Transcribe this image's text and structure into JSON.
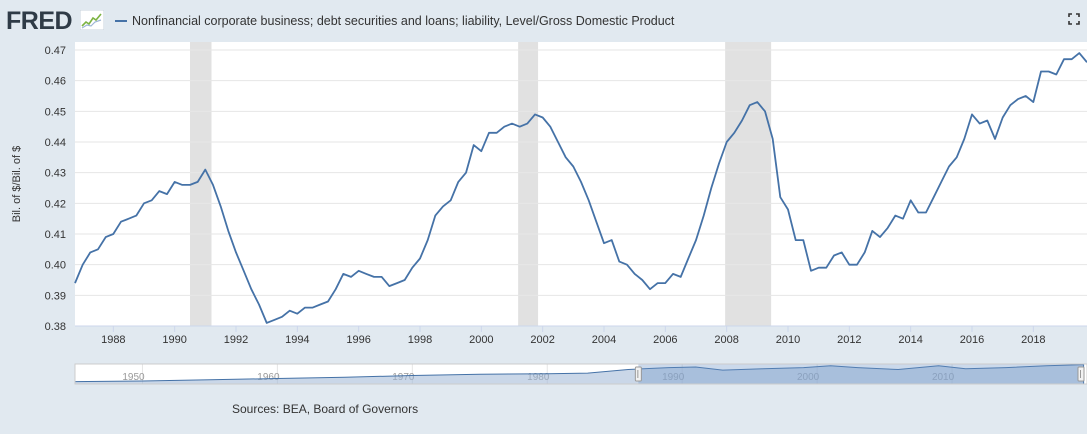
{
  "header": {
    "logo_text": "FRED",
    "logo_icon": "sparkline-icon",
    "series_label": "Nonfinancial corporate business; debt securities and loans; liability, Level/Gross Domestic Product",
    "fullscreen_icon": "expand-icon"
  },
  "colors": {
    "line": "#4572a7",
    "recession": "#e1e1e1",
    "page_background": "#e1e9f0",
    "plot_background": "#ffffff",
    "navigator_fill": "#9eb6d6",
    "navigator_mask": "#6b93c7"
  },
  "source_text": "Sources: BEA, Board of Governors",
  "chart_data": {
    "type": "line",
    "ylabel": "Bil. of $/Bil. of $",
    "ylim": [
      0.38,
      0.47
    ],
    "y_ticks": [
      "0.38",
      "0.39",
      "0.40",
      "0.41",
      "0.42",
      "0.43",
      "0.44",
      "0.45",
      "0.46",
      "0.47"
    ],
    "x_ticks": [
      "1988",
      "1990",
      "1992",
      "1994",
      "1996",
      "1998",
      "2000",
      "2002",
      "2004",
      "2006",
      "2008",
      "2010",
      "2012",
      "2014",
      "2016",
      "2018"
    ],
    "grid": "horizontal",
    "recessions": [
      [
        1990.5,
        1991.2
      ],
      [
        2001.2,
        2001.85
      ],
      [
        2007.95,
        2009.45
      ]
    ],
    "series": [
      {
        "x": [
          1986.75,
          1987.0,
          1987.25,
          1987.5,
          1987.75,
          1988.0,
          1988.25,
          1988.5,
          1988.75,
          1989.0,
          1989.25,
          1989.5,
          1989.75,
          1990.0,
          1990.25,
          1990.5,
          1990.75,
          1991.0,
          1991.25,
          1991.5,
          1991.75,
          1992.0,
          1992.25,
          1992.5,
          1992.75,
          1993.0,
          1993.25,
          1993.5,
          1993.75,
          1994.0,
          1994.25,
          1994.5,
          1994.75,
          1995.0,
          1995.25,
          1995.5,
          1995.75,
          1996.0,
          1996.25,
          1996.5,
          1996.75,
          1997.0,
          1997.25,
          1997.5,
          1997.75,
          1998.0,
          1998.25,
          1998.5,
          1998.75,
          1999.0,
          1999.25,
          1999.5,
          1999.75,
          2000.0,
          2000.25,
          2000.5,
          2000.75,
          2001.0,
          2001.25,
          2001.5,
          2001.75,
          2002.0,
          2002.25,
          2002.5,
          2002.75,
          2003.0,
          2003.25,
          2003.5,
          2003.75,
          2004.0,
          2004.25,
          2004.5,
          2004.75,
          2005.0,
          2005.25,
          2005.5,
          2005.75,
          2006.0,
          2006.25,
          2006.5,
          2006.75,
          2007.0,
          2007.25,
          2007.5,
          2007.75,
          2008.0,
          2008.25,
          2008.5,
          2008.75,
          2009.0,
          2009.25,
          2009.5,
          2009.75,
          2010.0,
          2010.25,
          2010.5,
          2010.75,
          2011.0,
          2011.25,
          2011.5,
          2011.75,
          2012.0,
          2012.25,
          2012.5,
          2012.75,
          2013.0,
          2013.25,
          2013.5,
          2013.75,
          2014.0,
          2014.25,
          2014.5,
          2014.75,
          2015.0,
          2015.25,
          2015.5,
          2015.75,
          2016.0,
          2016.25,
          2016.5,
          2016.75,
          2017.0,
          2017.25,
          2017.5,
          2017.75,
          2018.0,
          2018.25,
          2018.5,
          2018.75,
          2019.0,
          2019.25,
          2019.5,
          2019.75
        ],
        "values": [
          0.394,
          0.4,
          0.404,
          0.405,
          0.409,
          0.41,
          0.414,
          0.415,
          0.416,
          0.42,
          0.421,
          0.424,
          0.423,
          0.427,
          0.426,
          0.426,
          0.427,
          0.431,
          0.426,
          0.419,
          0.411,
          0.404,
          0.398,
          0.392,
          0.387,
          0.381,
          0.382,
          0.383,
          0.385,
          0.384,
          0.386,
          0.386,
          0.387,
          0.388,
          0.392,
          0.397,
          0.396,
          0.398,
          0.397,
          0.396,
          0.396,
          0.393,
          0.394,
          0.395,
          0.399,
          0.402,
          0.408,
          0.416,
          0.419,
          0.421,
          0.427,
          0.43,
          0.439,
          0.437,
          0.443,
          0.443,
          0.445,
          0.446,
          0.445,
          0.446,
          0.449,
          0.448,
          0.445,
          0.44,
          0.435,
          0.432,
          0.427,
          0.421,
          0.414,
          0.407,
          0.408,
          0.401,
          0.4,
          0.397,
          0.395,
          0.392,
          0.394,
          0.394,
          0.397,
          0.396,
          0.402,
          0.408,
          0.416,
          0.425,
          0.433,
          0.44,
          0.443,
          0.447,
          0.452,
          0.453,
          0.45,
          0.441,
          0.422,
          0.418,
          0.408,
          0.408,
          0.398,
          0.399,
          0.399,
          0.403,
          0.404,
          0.4,
          0.4,
          0.404,
          0.411,
          0.409,
          0.412,
          0.416,
          0.415,
          0.421,
          0.417,
          0.417,
          0.422,
          0.427,
          0.432,
          0.435,
          0.441,
          0.449,
          0.446,
          0.447,
          0.441,
          0.448,
          0.452,
          0.454,
          0.455,
          0.453,
          0.463,
          0.463,
          0.462,
          0.467,
          0.467,
          0.469,
          0.466
        ]
      }
    ],
    "navigator": {
      "x_ticks": [
        "1950",
        "1960",
        "1970",
        "1980",
        "1990",
        "2000",
        "2010"
      ],
      "x_range": [
        1945,
        2020
      ],
      "selected_range": [
        1986.75,
        2019.75
      ],
      "overview_x": [
        1945,
        1950,
        1955,
        1960,
        1965,
        1970,
        1975,
        1980,
        1983,
        1986,
        1989,
        1991,
        1993,
        1996,
        1999,
        2001,
        2003,
        2006,
        2009,
        2011,
        2014,
        2017,
        2019.75
      ],
      "overview_values": [
        0.19,
        0.2,
        0.22,
        0.24,
        0.26,
        0.29,
        0.31,
        0.32,
        0.33,
        0.39,
        0.42,
        0.43,
        0.38,
        0.4,
        0.42,
        0.45,
        0.42,
        0.39,
        0.45,
        0.4,
        0.42,
        0.45,
        0.47
      ]
    }
  }
}
